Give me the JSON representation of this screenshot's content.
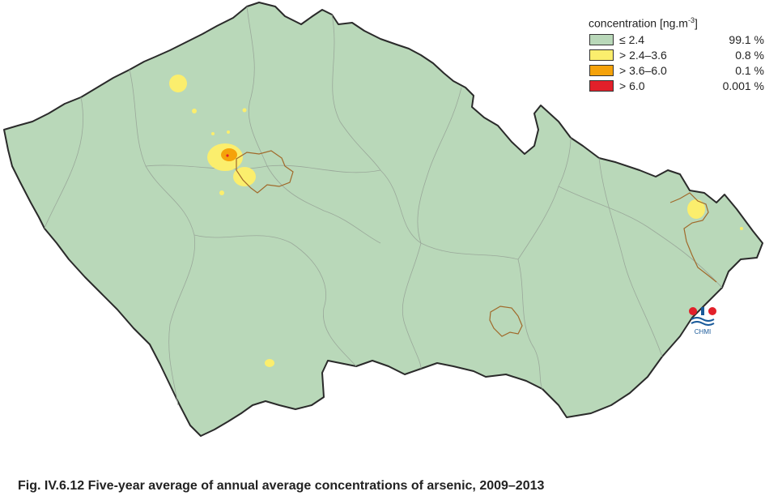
{
  "colors": {
    "background": "#b9d8b9",
    "border": "#2a2a2a",
    "region_lines": "#9aa89a",
    "city_border": "#a0692a",
    "class_low": "#b9d8b9",
    "class_mid": "#fbee6d",
    "class_high": "#f5a20a",
    "class_top": "#e2202a",
    "chmi_red": "#e2202a",
    "chmi_blue": "#1a5a9a"
  },
  "legend": {
    "title": "concentration [ng.m",
    "title_sup": "-3",
    "title_end": "]",
    "classes": [
      {
        "label": "≤ 2.4",
        "percent": "99.1 %",
        "color": "#b9d8b9"
      },
      {
        "label": "> 2.4–3.6",
        "percent": "0.8 %",
        "color": "#fbee6d"
      },
      {
        "label": "> 3.6–6.0",
        "percent": "0.1 %",
        "color": "#f5a20a"
      },
      {
        "label": "> 6.0",
        "percent": "0.001 %",
        "color": "#e2202a"
      }
    ]
  },
  "logo": {
    "text": "CHMI"
  },
  "caption": "Fig. IV.6.12  Five-year average of annual average concentrations of arsenic, 2009–2013"
}
